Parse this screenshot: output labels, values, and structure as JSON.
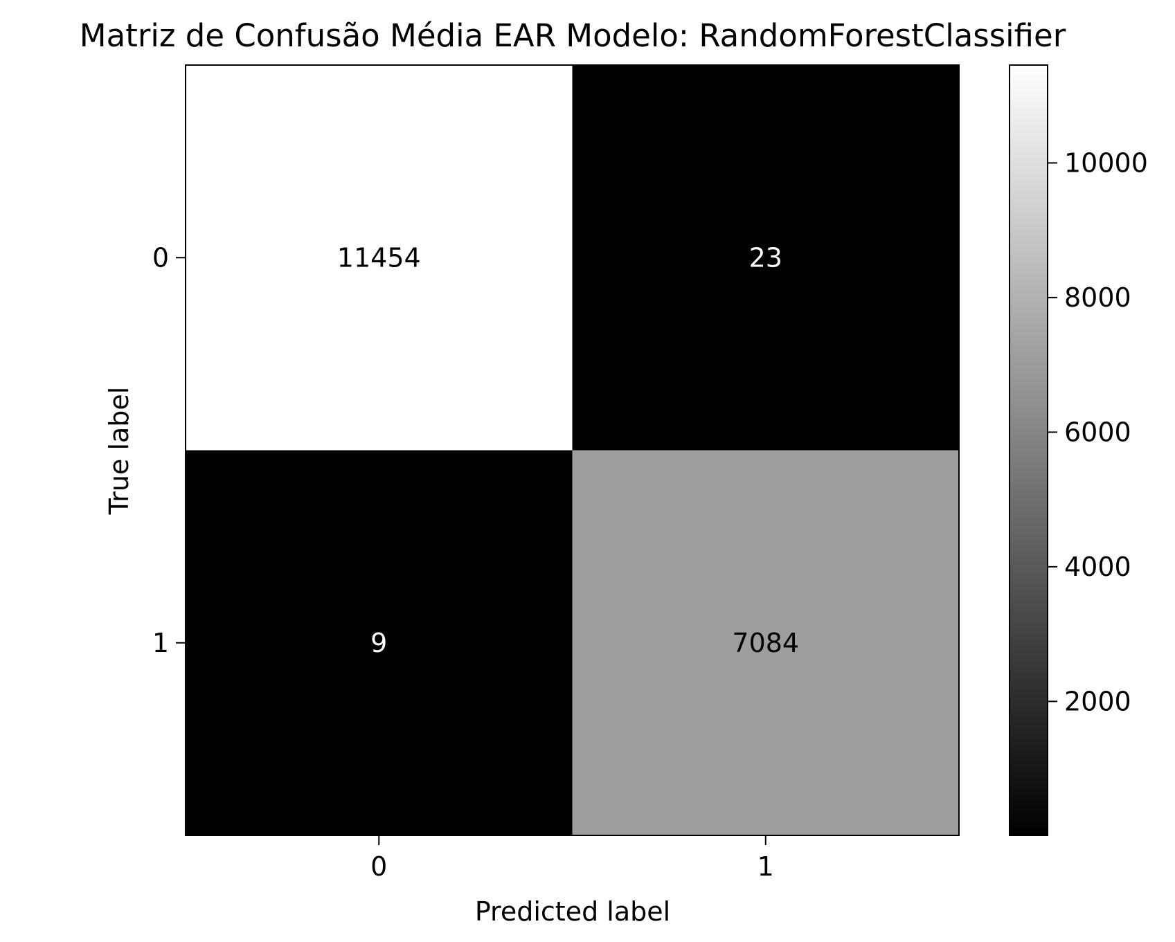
{
  "chart_data": {
    "type": "heatmap",
    "title": "Matriz de Confusão Média EAR Modelo: RandomForestClassifier",
    "xlabel": "Predicted label",
    "ylabel": "True label",
    "x_categories": [
      "0",
      "1"
    ],
    "y_categories": [
      "0",
      "1"
    ],
    "matrix": [
      [
        11454,
        23
      ],
      [
        9,
        7084
      ]
    ],
    "cell_labels": [
      [
        "11454",
        "23"
      ],
      [
        "9",
        "7084"
      ]
    ],
    "colormap": "gray",
    "colorbar": {
      "range": [
        9,
        11454
      ],
      "ticks": [
        2000,
        4000,
        6000,
        8000,
        10000
      ],
      "tick_labels": [
        "2000",
        "4000",
        "6000",
        "8000",
        "10000"
      ]
    },
    "grid": false
  }
}
